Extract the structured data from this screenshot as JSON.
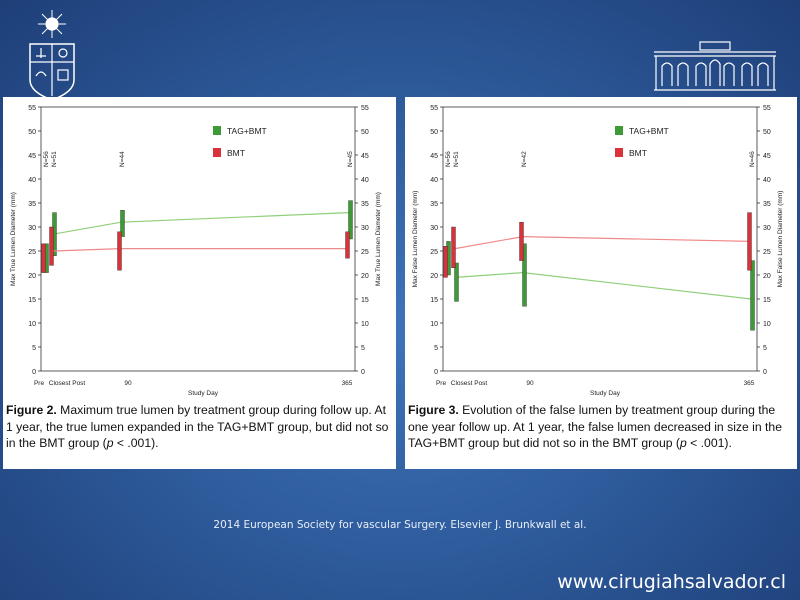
{
  "slide": {
    "footer": "2014 European Society for vascular Surgery. Elsevier J. Brunkwall et al.",
    "website": "www.cirugiahsalvador.cl"
  },
  "colors": {
    "green": "#3e9a36",
    "red": "#d9323a",
    "green_line": "#8fd07a",
    "red_line": "#f08a8a"
  },
  "figure2": {
    "caption_label": "Figure 2.",
    "caption_pre": " Maximum true lumen by treatment group during follow up. At 1 year, the true lumen expanded in the TAG+BMT group, but did not so in the BMT group (",
    "caption_p": "p",
    "caption_post": " < .001)."
  },
  "figure3": {
    "caption_label": "Figure 3.",
    "caption_pre": " Evolution of the false lumen by treatment group during the one year follow up. At 1 year, the false lumen decreased in size in the TAG+BMT group but did not so in the BMT group (",
    "caption_p": "p",
    "caption_post": " < .001)."
  },
  "chart_data": [
    {
      "type": "line",
      "xlabel": "Study Day",
      "ylabel": "Max True Lumen Diameter (mm)",
      "ylabel_right": "Max True Lumen Diameter (mm)",
      "ylim": [
        0,
        55
      ],
      "yticks": [
        0,
        5,
        10,
        15,
        20,
        25,
        30,
        35,
        40,
        45,
        50,
        55
      ],
      "x_ticks": [
        {
          "pos": 0,
          "label": "Pre"
        },
        {
          "pos": 1,
          "label": "Closest Post"
        },
        {
          "pos": 2,
          "label": "90"
        },
        {
          "pos": 3,
          "label": "365"
        }
      ],
      "n_labels": [
        {
          "pos": 0,
          "text": "N=56"
        },
        {
          "pos": 0.08,
          "text": "N=51"
        },
        {
          "pos": 2,
          "text": "N=44"
        },
        {
          "pos": 3,
          "text": "N=45"
        }
      ],
      "legend": [
        "TAG+BMT",
        "BMT"
      ],
      "series": [
        {
          "name": "TAG+BMT",
          "color": "#3e9a36",
          "points": [
            {
              "x": 0,
              "y": 23.5,
              "lo": 20.5,
              "hi": 26.5
            },
            {
              "x": 0.08,
              "y": 28.5,
              "lo": 24,
              "hi": 33
            },
            {
              "x": 2,
              "y": 31,
              "lo": 28,
              "hi": 33.5
            },
            {
              "x": 3,
              "y": 33,
              "lo": 27.5,
              "hi": 35.5
            }
          ]
        },
        {
          "name": "BMT",
          "color": "#d9323a",
          "points": [
            {
              "x": 0,
              "y": 24,
              "lo": 20.5,
              "hi": 26.5
            },
            {
              "x": 0.08,
              "y": 25,
              "lo": 22,
              "hi": 30
            },
            {
              "x": 2,
              "y": 25.5,
              "lo": 21,
              "hi": 29
            },
            {
              "x": 3,
              "y": 25.5,
              "lo": 23.5,
              "hi": 29
            }
          ]
        }
      ]
    },
    {
      "type": "line",
      "xlabel": "Study Day",
      "ylabel": "Max False Lumen Diameter (mm)",
      "ylabel_right": "Max False Lumen Diameter (mm)",
      "ylim": [
        0,
        55
      ],
      "yticks": [
        0,
        5,
        10,
        15,
        20,
        25,
        30,
        35,
        40,
        45,
        50,
        55
      ],
      "x_ticks": [
        {
          "pos": 0,
          "label": "Pre"
        },
        {
          "pos": 1,
          "label": "Closest Post"
        },
        {
          "pos": 2,
          "label": "90"
        },
        {
          "pos": 3,
          "label": "365"
        }
      ],
      "n_labels": [
        {
          "pos": 0,
          "text": "N=56"
        },
        {
          "pos": 0.08,
          "text": "N=51"
        },
        {
          "pos": 2,
          "text": "N=42"
        },
        {
          "pos": 3,
          "text": "N=46"
        }
      ],
      "legend": [
        "TAG+BMT",
        "BMT"
      ],
      "series": [
        {
          "name": "TAG+BMT",
          "color": "#3e9a36",
          "points": [
            {
              "x": 0,
              "y": 23,
              "lo": 20,
              "hi": 27
            },
            {
              "x": 0.08,
              "y": 19.5,
              "lo": 14.5,
              "hi": 22.5
            },
            {
              "x": 2,
              "y": 20.5,
              "lo": 13.5,
              "hi": 26.5
            },
            {
              "x": 3,
              "y": 15,
              "lo": 8.5,
              "hi": 23
            }
          ]
        },
        {
          "name": "BMT",
          "color": "#d9323a",
          "points": [
            {
              "x": 0,
              "y": 24,
              "lo": 19.5,
              "hi": 26
            },
            {
              "x": 0.08,
              "y": 25.5,
              "lo": 21.5,
              "hi": 30
            },
            {
              "x": 2,
              "y": 28,
              "lo": 23,
              "hi": 31
            },
            {
              "x": 3,
              "y": 27,
              "lo": 21,
              "hi": 33
            }
          ]
        }
      ]
    }
  ]
}
